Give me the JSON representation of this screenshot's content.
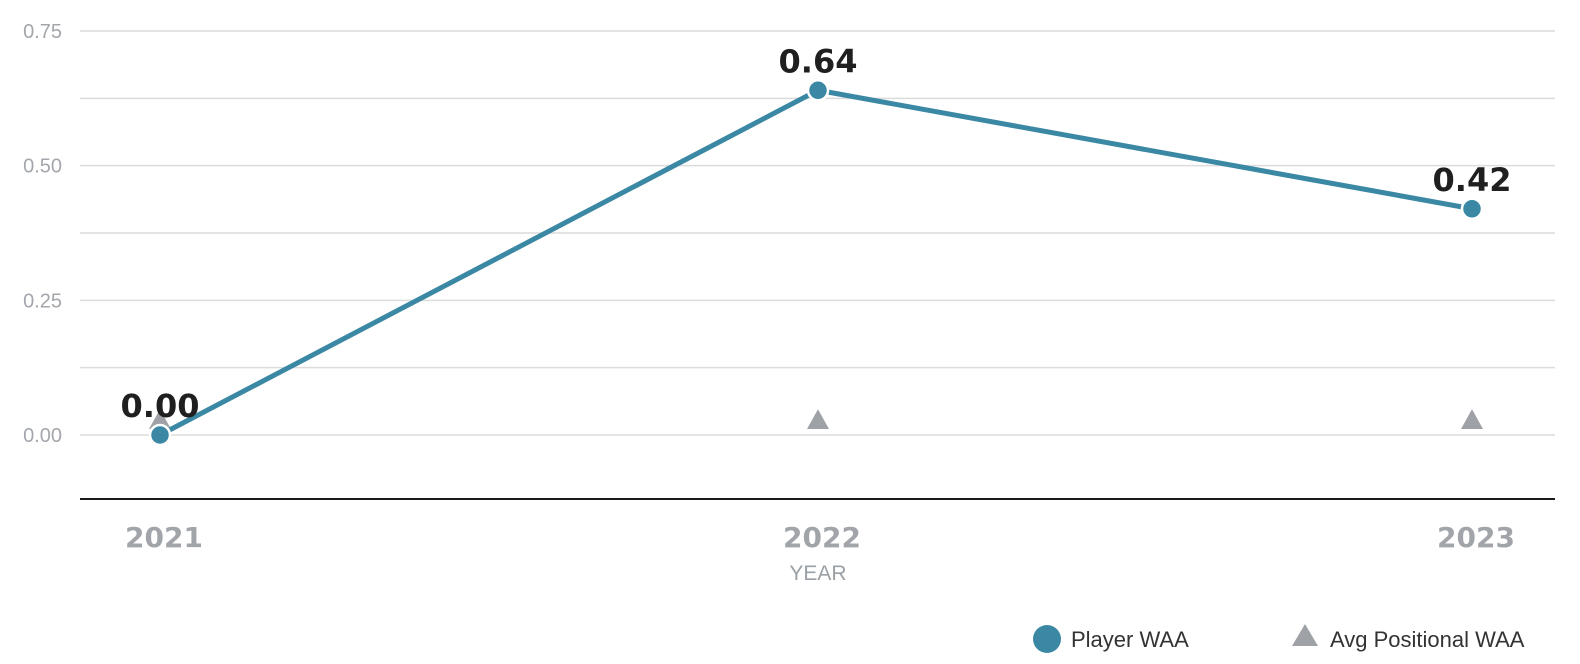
{
  "colors": {
    "player": "#3b88a5",
    "avg": "#9ea1a5",
    "grid": "#dcdcdc",
    "axis": "#1a1a1a",
    "point_outline": "#ffffff"
  },
  "chart_data": {
    "type": "line",
    "xlabel": "YEAR",
    "ylabel": "",
    "categories": [
      "2021",
      "2022",
      "2023"
    ],
    "ylim": [
      -0.12,
      0.75
    ],
    "yticks": [
      0.0,
      0.25,
      0.5,
      0.75
    ],
    "ytick_labels": [
      "0.00",
      "0.25",
      "0.50",
      "0.75"
    ],
    "grid": true,
    "legend_position": "bottom-right",
    "series": [
      {
        "name": "Player WAA",
        "marker": "circle",
        "values": [
          0.0,
          0.64,
          0.42
        ],
        "data_labels": [
          "0.00",
          "0.64",
          "0.42"
        ]
      },
      {
        "name": "Avg Positional WAA",
        "marker": "triangle",
        "values": [
          0.02,
          0.02,
          0.02
        ]
      }
    ]
  }
}
